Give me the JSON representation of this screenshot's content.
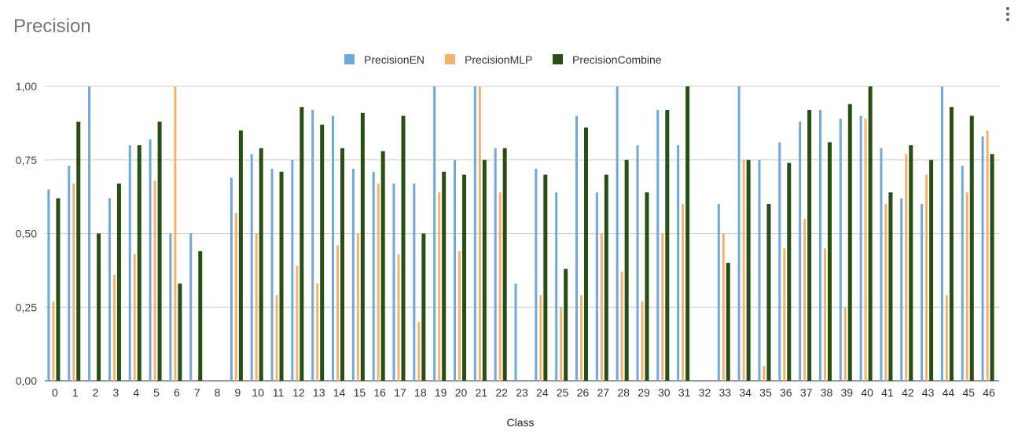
{
  "chart_title": "Precision",
  "menu_icon": "more-vert-icon",
  "chart_data": {
    "type": "bar",
    "title": "Precision",
    "xlabel": "Class",
    "ylabel": "",
    "ylim": [
      0,
      1
    ],
    "yticks": [
      "0,00",
      "0,25",
      "0,50",
      "0,75",
      "1,00"
    ],
    "ytick_values": [
      0,
      0.25,
      0.5,
      0.75,
      1
    ],
    "grid": true,
    "legend_position": "top",
    "categories": [
      "0",
      "1",
      "2",
      "3",
      "4",
      "5",
      "6",
      "7",
      "8",
      "9",
      "10",
      "11",
      "12",
      "13",
      "14",
      "15",
      "16",
      "17",
      "18",
      "19",
      "20",
      "21",
      "22",
      "23",
      "24",
      "25",
      "26",
      "27",
      "28",
      "29",
      "30",
      "31",
      "32",
      "33",
      "34",
      "35",
      "36",
      "37",
      "38",
      "39",
      "40",
      "41",
      "42",
      "43",
      "44",
      "45",
      "46"
    ],
    "series": [
      {
        "name": "PrecisionEN",
        "color": "#6fa8dc",
        "values": [
          0.65,
          0.73,
          1.0,
          0.62,
          0.8,
          0.82,
          0.5,
          0.5,
          0,
          0.69,
          0.77,
          0.72,
          0.75,
          0.92,
          0.9,
          0.72,
          0.71,
          0.67,
          0.67,
          1.0,
          0.75,
          1.0,
          0.79,
          0.33,
          0.72,
          0.64,
          0.9,
          0.64,
          1.0,
          0.8,
          0.92,
          0.8,
          0,
          0.6,
          1.0,
          0.75,
          0.81,
          0.88,
          0.92,
          0.89,
          0.9,
          0.79,
          0.62,
          0.6,
          1.0,
          0.73,
          0.83
        ]
      },
      {
        "name": "PrecisionMLP",
        "color": "#f6b26b",
        "values": [
          0.27,
          0.67,
          0,
          0.36,
          0.43,
          0.68,
          1.0,
          0,
          0,
          0.57,
          0.5,
          0.29,
          0.39,
          0.33,
          0.46,
          0.5,
          0.67,
          0.43,
          0.2,
          0.64,
          0.44,
          1.0,
          0.64,
          0,
          0.29,
          0.25,
          0.29,
          0.5,
          0.37,
          0.27,
          0.5,
          0.6,
          0,
          0.5,
          0.75,
          0.05,
          0.45,
          0.55,
          0.45,
          0.25,
          0.89,
          0.6,
          0.77,
          0.7,
          0.29,
          0.64,
          0.85
        ]
      },
      {
        "name": "PrecisionCombine",
        "color": "#274e13",
        "values": [
          0.62,
          0.88,
          0.5,
          0.67,
          0.8,
          0.88,
          0.33,
          0.44,
          0,
          0.85,
          0.79,
          0.71,
          0.93,
          0.87,
          0.79,
          0.91,
          0.78,
          0.9,
          0.5,
          0.71,
          0.7,
          0.75,
          0.79,
          0,
          0.7,
          0.38,
          0.86,
          0.7,
          0.75,
          0.64,
          0.92,
          1.0,
          0,
          0.4,
          0.75,
          0.6,
          0.74,
          0.92,
          0.81,
          0.94,
          1.0,
          0.64,
          0.8,
          0.75,
          0.93,
          0.9,
          0.77
        ]
      }
    ]
  }
}
